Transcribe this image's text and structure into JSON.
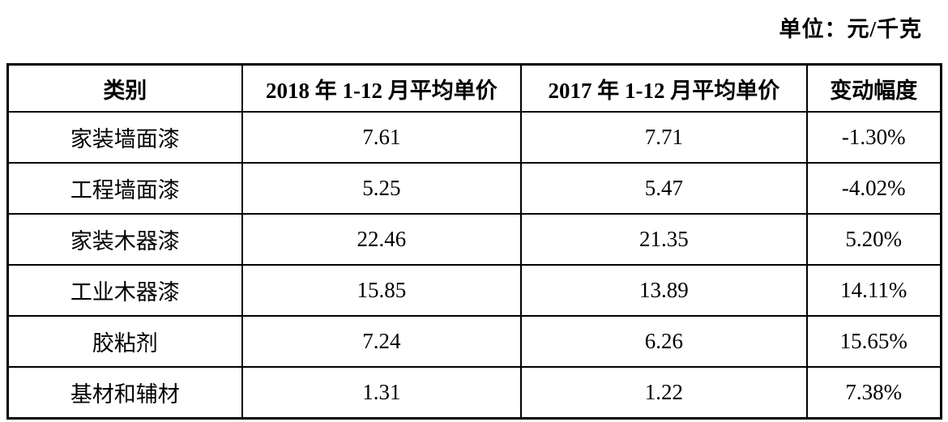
{
  "unit_note": "单位：元/千克",
  "table": {
    "headers": [
      "类别",
      "2018 年 1-12 月平均单价",
      "2017 年 1-12 月平均单价",
      "变动幅度"
    ],
    "rows": [
      [
        "家装墙面漆",
        "7.61",
        "7.71",
        "-1.30%"
      ],
      [
        "工程墙面漆",
        "5.25",
        "5.47",
        "-4.02%"
      ],
      [
        "家装木器漆",
        "22.46",
        "21.35",
        "5.20%"
      ],
      [
        "工业木器漆",
        "15.85",
        "13.89",
        "14.11%"
      ],
      [
        "胶粘剂",
        "7.24",
        "6.26",
        "15.65%"
      ],
      [
        "基材和辅材",
        "1.31",
        "1.22",
        "7.38%"
      ]
    ]
  }
}
